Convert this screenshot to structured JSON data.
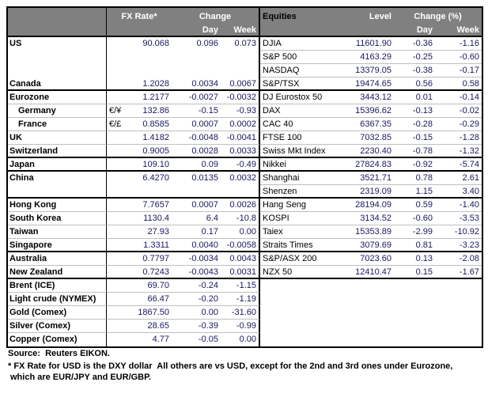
{
  "colors": {
    "header_bg": "#808080",
    "header_text": "#ffffff",
    "value_text": "#181860",
    "label_text": "#000000",
    "section_border": "#000000",
    "row_separator": "#bfbfbf"
  },
  "header": {
    "fx_rate": "FX Rate*",
    "change": "Change",
    "day": "Day",
    "week": "Week",
    "equities": "Equities",
    "level": "Level",
    "change_pct": "Change (%)"
  },
  "rows": [
    {
      "fx": {
        "label": "US",
        "rate": "90.068",
        "day": "0.096",
        "week": "0.073"
      },
      "eq": {
        "label": "DJIA",
        "level": "11601.90",
        "day": "-0.36",
        "week": "-1.16"
      },
      "thick": false,
      "lsep": false,
      "rsep": true
    },
    {
      "fx": {
        "label": "",
        "rate": "",
        "day": "",
        "week": ""
      },
      "eq": {
        "label": "S&P 500",
        "level": "4163.29",
        "day": "-0.25",
        "week": "-0.60"
      },
      "thick": false,
      "lsep": false,
      "rsep": true
    },
    {
      "fx": {
        "label": "",
        "rate": "",
        "day": "",
        "week": ""
      },
      "eq": {
        "label": "NASDAQ",
        "level": "13379.05",
        "day": "-0.38",
        "week": "-0.17"
      },
      "thick": false,
      "lsep": false,
      "rsep": true
    },
    {
      "fx": {
        "label": "Canada",
        "rate": "1.2028",
        "day": "0.0034",
        "week": "0.0067"
      },
      "eq": {
        "label": "S&P/TSX",
        "level": "19474.65",
        "day": "0.56",
        "week": "0.58"
      },
      "thick": true,
      "lsep": false,
      "rsep": false
    },
    {
      "fx": {
        "label": "Eurozone",
        "rate": "1.2177",
        "day": "-0.0027",
        "week": "-0.0032"
      },
      "eq": {
        "label": "DJ Eurostox 50",
        "level": "3443.12",
        "day": "0.01",
        "week": "-0.14"
      },
      "thick": false,
      "lsep": true,
      "rsep": true
    },
    {
      "fx": {
        "label": "Germany",
        "indent": true,
        "sym": "€/¥",
        "rate": "132.86",
        "day": "-0.15",
        "week": "-0.93"
      },
      "eq": {
        "label": "DAX",
        "level": "15396.62",
        "day": "-0.13",
        "week": "-0.02"
      },
      "thick": false,
      "lsep": true,
      "rsep": true
    },
    {
      "fx": {
        "label": "France",
        "indent": true,
        "sym": "€/£",
        "rate": "0.8585",
        "day": "0.0007",
        "week": "0.0002"
      },
      "eq": {
        "label": "CAC 40",
        "level": "6367.35",
        "day": "-0.28",
        "week": "-0.29"
      },
      "thick": false,
      "lsep": true,
      "rsep": true
    },
    {
      "fx": {
        "label": "UK",
        "rate": "1.4182",
        "day": "-0.0048",
        "week": "-0.0041"
      },
      "eq": {
        "label": "FTSE 100",
        "level": "7032.85",
        "day": "-0.15",
        "week": "-1.28"
      },
      "thick": false,
      "lsep": true,
      "rsep": true
    },
    {
      "fx": {
        "label": "Switzerland",
        "rate": "0.9005",
        "day": "0.0028",
        "week": "0.0033"
      },
      "eq": {
        "label": "Swiss Mkt Index",
        "level": "2230.40",
        "day": "-0.78",
        "week": "-1.32"
      },
      "thick": true,
      "lsep": false,
      "rsep": false
    },
    {
      "fx": {
        "label": "Japan",
        "rate": "109.10",
        "day": "0.09",
        "week": "-0.49"
      },
      "eq": {
        "label": "Nikkei",
        "level": "27824.83",
        "day": "-0.92",
        "week": "-5.74"
      },
      "thick": true,
      "lsep": false,
      "rsep": false
    },
    {
      "fx": {
        "label": "China",
        "rate": "6.4270",
        "day": "0.0135",
        "week": "0.0032"
      },
      "eq": {
        "label": "Shanghai",
        "level": "3521.71",
        "day": "0.78",
        "week": "2.61"
      },
      "thick": false,
      "lsep": false,
      "rsep": true
    },
    {
      "fx": {
        "label": "",
        "rate": "",
        "day": "",
        "week": ""
      },
      "eq": {
        "label": "Shenzen",
        "level": "2319.09",
        "day": "1.15",
        "week": "3.40"
      },
      "thick": true,
      "lsep": false,
      "rsep": false
    },
    {
      "fx": {
        "label": "Hong Kong",
        "rate": "7.7657",
        "day": "0.0007",
        "week": "0.0026"
      },
      "eq": {
        "label": "Hang Seng",
        "level": "28194.09",
        "day": "0.59",
        "week": "-1.40"
      },
      "thick": false,
      "lsep": true,
      "rsep": true
    },
    {
      "fx": {
        "label": "South Korea",
        "rate": "1130.4",
        "day": "6.4",
        "week": "-10.8"
      },
      "eq": {
        "label": "KOSPI",
        "level": "3134.52",
        "day": "-0.60",
        "week": "-3.53"
      },
      "thick": false,
      "lsep": true,
      "rsep": true
    },
    {
      "fx": {
        "label": "Taiwan",
        "rate": "27.93",
        "day": "0.17",
        "week": "0.00"
      },
      "eq": {
        "label": "Taiex",
        "level": "15353.89",
        "day": "-2.99",
        "week": "-10.92"
      },
      "thick": false,
      "lsep": true,
      "rsep": true
    },
    {
      "fx": {
        "label": "Singapore",
        "rate": "1.3311",
        "day": "0.0040",
        "week": "-0.0058"
      },
      "eq": {
        "label": "Straits Times",
        "level": "3079.69",
        "day": "0.81",
        "week": "-3.23"
      },
      "thick": true,
      "lsep": false,
      "rsep": false
    },
    {
      "fx": {
        "label": "Australia",
        "rate": "0.7797",
        "day": "-0.0034",
        "week": "0.0043"
      },
      "eq": {
        "label": "S&P/ASX 200",
        "level": "7023.60",
        "day": "0.13",
        "week": "-2.08"
      },
      "thick": false,
      "lsep": true,
      "rsep": true
    },
    {
      "fx": {
        "label": "New Zealand",
        "rate": "0.7243",
        "day": "-0.0043",
        "week": "0.0031"
      },
      "eq": {
        "label": "NZX 50",
        "level": "12410.47",
        "day": "0.15",
        "week": "-1.67"
      },
      "thick": true,
      "lsep": false,
      "rsep": false
    },
    {
      "fx": {
        "label": "Brent (ICE)",
        "rate": "69.70",
        "day": "-0.24",
        "week": "-1.15"
      },
      "eq": {
        "label": "",
        "level": "",
        "day": "",
        "week": ""
      },
      "thick": false,
      "lsep": true,
      "rsep": false
    },
    {
      "fx": {
        "label": "Light crude (NYMEX)",
        "rate": "66.47",
        "day": "-0.20",
        "week": "-1.19"
      },
      "eq": {
        "label": "",
        "level": "",
        "day": "",
        "week": ""
      },
      "thick": false,
      "lsep": true,
      "rsep": false
    },
    {
      "fx": {
        "label": "Gold (Comex)",
        "rate": "1867.50",
        "day": "0.00",
        "week": "-31.60"
      },
      "eq": {
        "label": "",
        "level": "",
        "day": "",
        "week": ""
      },
      "thick": false,
      "lsep": true,
      "rsep": false
    },
    {
      "fx": {
        "label": "Silver (Comex)",
        "rate": "28.65",
        "day": "-0.39",
        "week": "-0.99"
      },
      "eq": {
        "label": "",
        "level": "",
        "day": "",
        "week": ""
      },
      "thick": false,
      "lsep": true,
      "rsep": false
    },
    {
      "fx": {
        "label": "Copper (Comex)",
        "rate": "4.77",
        "day": "-0.05",
        "week": "0.00"
      },
      "eq": {
        "label": "",
        "level": "",
        "day": "",
        "week": ""
      },
      "thick": false,
      "lsep": false,
      "rsep": false
    }
  ],
  "footer": {
    "source": "Source:  Reuters EIKON.",
    "note_line1": "* FX Rate for USD is the DXY dollar  All others are vs USD, except for the 2nd and 3rd ones under Eurozone,",
    "note_line2": "which are EUR/JPY and EUR/GBP."
  }
}
